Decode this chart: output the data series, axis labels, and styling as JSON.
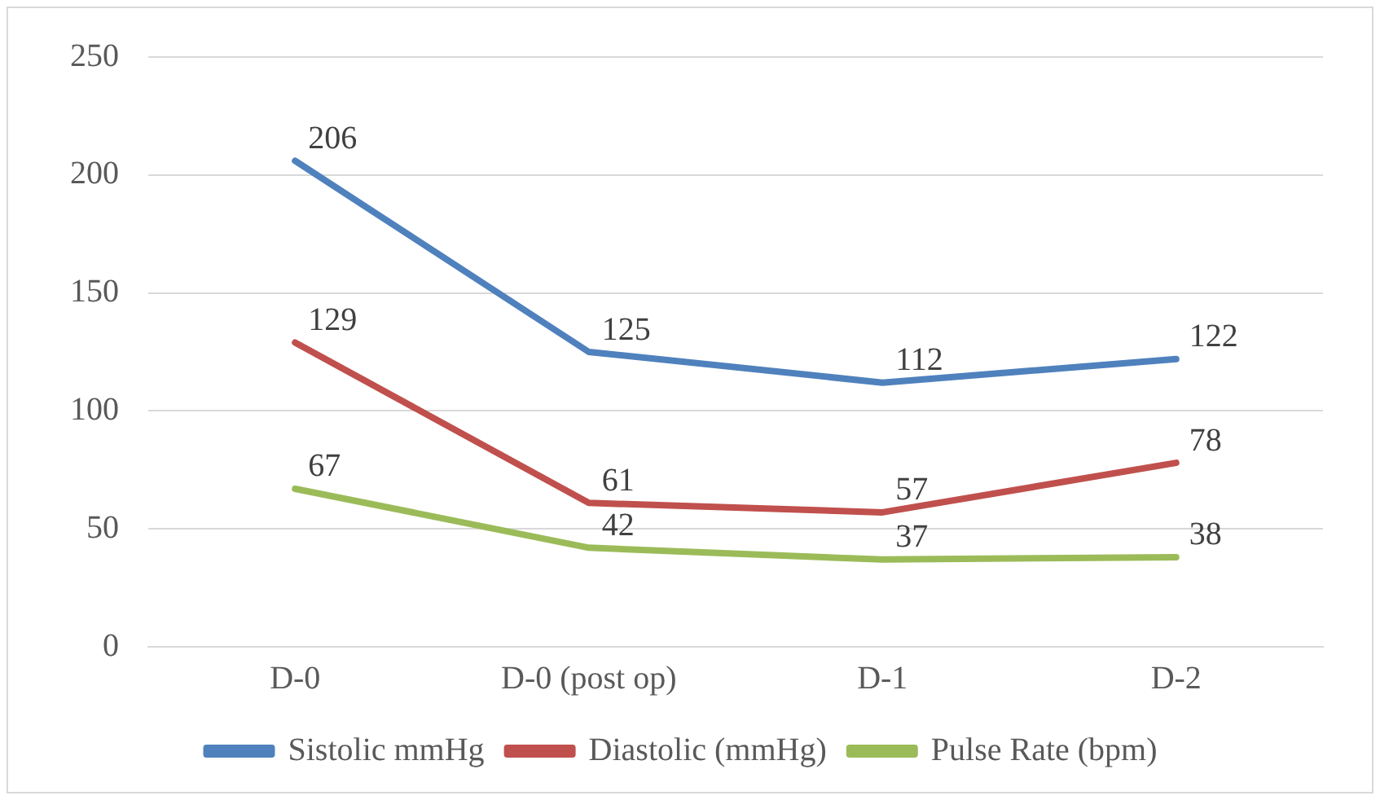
{
  "chart_data": {
    "type": "line",
    "categories": [
      "D-0",
      "D-0 (post op)",
      "D-1",
      "D-2"
    ],
    "series": [
      {
        "name": "Sistolic mmHg",
        "color": "#4f81bd",
        "values": [
          206,
          125,
          112,
          122
        ]
      },
      {
        "name": "Diastolic (mmHg)",
        "color": "#c0504d",
        "values": [
          129,
          61,
          57,
          78
        ]
      },
      {
        "name": "Pulse Rate (bpm)",
        "color": "#9bbb59",
        "values": [
          67,
          42,
          37,
          38
        ]
      }
    ],
    "ylim": [
      0,
      250
    ],
    "yticks": [
      0,
      50,
      100,
      150,
      200,
      250
    ],
    "grid": "y",
    "legend": "bottom",
    "data_labels": true,
    "marker": "none"
  }
}
